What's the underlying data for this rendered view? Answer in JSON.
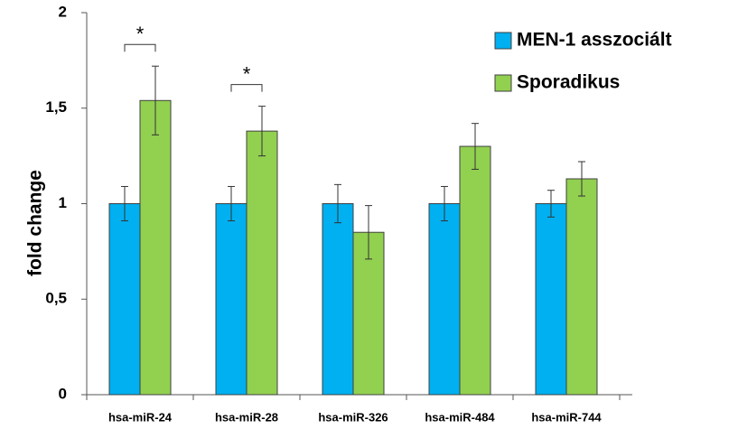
{
  "chart_data": {
    "type": "bar",
    "y_label": "fold change",
    "categories": [
      "hsa-miR-24",
      "hsa-miR-28",
      "hsa-miR-326",
      "hsa-miR-484",
      "hsa-miR-744"
    ],
    "series": [
      {
        "name": "MEN-1 asszociált",
        "color": "#00b0f0",
        "values": [
          1,
          1,
          1,
          1,
          1
        ],
        "errors": [
          0.09,
          0.09,
          0.1,
          0.09,
          0.07
        ]
      },
      {
        "name": "Sporadikus",
        "color": "#92d050",
        "values": [
          1.54,
          1.38,
          0.85,
          1.3,
          1.13
        ],
        "errors": [
          0.18,
          0.13,
          0.14,
          0.12,
          0.09
        ]
      }
    ],
    "significance": [
      "*",
      "*",
      null,
      null,
      null
    ],
    "ylim": [
      0,
      2
    ],
    "yticks": [
      0,
      {
        "value": 0.5,
        "label": "0,5"
      },
      1,
      {
        "value": 1.5,
        "label": "1,5"
      },
      2
    ],
    "legend": "top-right"
  }
}
